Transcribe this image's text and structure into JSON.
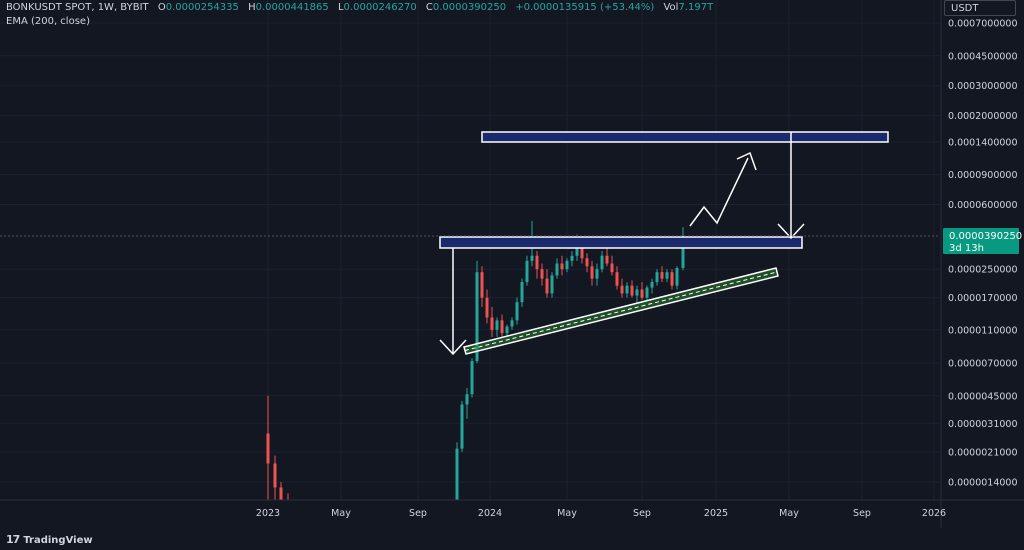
{
  "header": {
    "symbol": "BONKUSDT SPOT, 1W, BYBIT",
    "o_label": "O",
    "o_value": "0.0000254335",
    "h_label": "H",
    "h_value": "0.0000441865",
    "l_label": "L",
    "l_value": "0.0000246270",
    "c_label": "C",
    "c_value": "0.0000390250",
    "change": "+0.0000135915 (+53.44%)",
    "vol_label": "Vol",
    "vol_value": "7.197T"
  },
  "indicator": "EMA (200, close)",
  "currency": "USDT",
  "price_tag": {
    "price": "0.0000390250",
    "countdown": "3d 13h"
  },
  "logo_text": "TradingView",
  "colors": {
    "up": "#26a69a",
    "down": "#ef5350",
    "background": "#131722",
    "zone": "#1a2a6c"
  },
  "chart_data": {
    "type": "candlestick",
    "y_scale": "log",
    "y_ticks": [
      "0.0007000000",
      "0.0004500000",
      "0.0003000000",
      "0.0002000000",
      "0.0001400000",
      "0.0000900000",
      "0.0000600000",
      "0.0000390250",
      "0.0000250000",
      "0.0000170000",
      "0.0000110000",
      "0.0000070000",
      "0.0000045000",
      "0.0000031000",
      "0.0000021000",
      "0.0000014000"
    ],
    "x_ticks": [
      "2023",
      "May",
      "Sep",
      "2024",
      "May",
      "Sep",
      "2025",
      "May",
      "Sep",
      "2026"
    ],
    "candles": [
      {
        "o": 2.7e-06,
        "h": 4.5e-06,
        "l": 1e-06,
        "c": 1.8e-06,
        "x": 268
      },
      {
        "o": 1.8e-06,
        "h": 2e-06,
        "l": 1.1e-06,
        "c": 1.3e-06,
        "x": 275
      },
      {
        "o": 1.3e-06,
        "h": 1.4e-06,
        "l": 1e-06,
        "c": 1.1e-06,
        "x": 281
      },
      {
        "o": 1.1e-06,
        "h": 1.2e-06,
        "l": 1e-06,
        "c": 1e-06,
        "x": 288
      },
      {
        "o": 1.1e-06,
        "h": 2.4e-06,
        "l": 1.1e-06,
        "c": 2.2e-06,
        "x": 457
      },
      {
        "o": 2.2e-06,
        "h": 4.2e-06,
        "l": 2.1e-06,
        "c": 4e-06,
        "x": 462
      },
      {
        "o": 4e-06,
        "h": 5e-06,
        "l": 3.3e-06,
        "c": 4.6e-06,
        "x": 467
      },
      {
        "o": 4.6e-06,
        "h": 7.5e-06,
        "l": 4.4e-06,
        "c": 7.2e-06,
        "x": 472
      },
      {
        "o": 7.2e-06,
        "h": 2.8e-05,
        "l": 7e-06,
        "c": 2.4e-05,
        "x": 477
      },
      {
        "o": 2.4e-05,
        "h": 2.6e-05,
        "l": 1.5e-05,
        "c": 1.7e-05,
        "x": 482
      },
      {
        "o": 1.7e-05,
        "h": 1.9e-05,
        "l": 1.2e-05,
        "c": 1.3e-05,
        "x": 487
      },
      {
        "o": 1.3e-05,
        "h": 1.5e-05,
        "l": 1e-05,
        "c": 1.1e-05,
        "x": 492
      },
      {
        "o": 1.1e-05,
        "h": 1.3e-05,
        "l": 1e-05,
        "c": 1.25e-05,
        "x": 497
      },
      {
        "o": 1.25e-05,
        "h": 1.35e-05,
        "l": 1e-05,
        "c": 1.05e-05,
        "x": 502
      },
      {
        "o": 1.05e-05,
        "h": 1.18e-05,
        "l": 1e-05,
        "c": 1.15e-05,
        "x": 507
      },
      {
        "o": 1.15e-05,
        "h": 1.3e-05,
        "l": 1.1e-05,
        "c": 1.25e-05,
        "x": 512
      },
      {
        "o": 1.25e-05,
        "h": 1.7e-05,
        "l": 1.18e-05,
        "c": 1.6e-05,
        "x": 517
      },
      {
        "o": 1.6e-05,
        "h": 2.2e-05,
        "l": 1.5e-05,
        "c": 2.1e-05,
        "x": 522
      },
      {
        "o": 2.1e-05,
        "h": 3e-05,
        "l": 2e-05,
        "c": 2.8e-05,
        "x": 527
      },
      {
        "o": 2.8e-05,
        "h": 4.8e-05,
        "l": 2.6e-05,
        "c": 3e-05,
        "x": 532
      },
      {
        "o": 3e-05,
        "h": 3.2e-05,
        "l": 2.2e-05,
        "c": 2.5e-05,
        "x": 537
      },
      {
        "o": 2.5e-05,
        "h": 2.7e-05,
        "l": 2e-05,
        "c": 2.2e-05,
        "x": 542
      },
      {
        "o": 2.2e-05,
        "h": 2.5e-05,
        "l": 1.7e-05,
        "c": 1.8e-05,
        "x": 547
      },
      {
        "o": 1.8e-05,
        "h": 2.4e-05,
        "l": 1.7e-05,
        "c": 2.3e-05,
        "x": 552
      },
      {
        "o": 2.3e-05,
        "h": 2.9e-05,
        "l": 2.2e-05,
        "c": 2.7e-05,
        "x": 557
      },
      {
        "o": 2.7e-05,
        "h": 3e-05,
        "l": 2.3e-05,
        "c": 2.5e-05,
        "x": 562
      },
      {
        "o": 2.5e-05,
        "h": 2.9e-05,
        "l": 2.4e-05,
        "c": 2.8e-05,
        "x": 567
      },
      {
        "o": 2.8e-05,
        "h": 3.2e-05,
        "l": 2.6e-05,
        "c": 3e-05,
        "x": 572
      },
      {
        "o": 3e-05,
        "h": 4e-05,
        "l": 2.8e-05,
        "c": 3.4e-05,
        "x": 577
      },
      {
        "o": 3.4e-05,
        "h": 3.9e-05,
        "l": 2.7e-05,
        "c": 2.9e-05,
        "x": 582
      },
      {
        "o": 2.9e-05,
        "h": 3.1e-05,
        "l": 2.4e-05,
        "c": 2.6e-05,
        "x": 587
      },
      {
        "o": 2.6e-05,
        "h": 2.8e-05,
        "l": 2e-05,
        "c": 2.2e-05,
        "x": 592
      },
      {
        "o": 2.2e-05,
        "h": 2.7e-05,
        "l": 2e-05,
        "c": 2.5e-05,
        "x": 597
      },
      {
        "o": 2.5e-05,
        "h": 3.2e-05,
        "l": 2.4e-05,
        "c": 3e-05,
        "x": 602
      },
      {
        "o": 3e-05,
        "h": 3.4e-05,
        "l": 2.6e-05,
        "c": 2.7e-05,
        "x": 607
      },
      {
        "o": 2.7e-05,
        "h": 3e-05,
        "l": 2.3e-05,
        "c": 2.4e-05,
        "x": 612
      },
      {
        "o": 2.4e-05,
        "h": 2.6e-05,
        "l": 1.9e-05,
        "c": 2e-05,
        "x": 617
      },
      {
        "o": 2e-05,
        "h": 2.2e-05,
        "l": 1.7e-05,
        "c": 1.8e-05,
        "x": 622
      },
      {
        "o": 1.8e-05,
        "h": 2.1e-05,
        "l": 1.7e-05,
        "c": 2e-05,
        "x": 627
      },
      {
        "o": 2e-05,
        "h": 2.15e-05,
        "l": 1.7e-05,
        "c": 1.75e-05,
        "x": 632
      },
      {
        "o": 1.75e-05,
        "h": 2e-05,
        "l": 1.6e-05,
        "c": 1.9e-05,
        "x": 637
      },
      {
        "o": 1.9e-05,
        "h": 2.1e-05,
        "l": 1.65e-05,
        "c": 1.7e-05,
        "x": 642
      },
      {
        "o": 1.7e-05,
        "h": 2e-05,
        "l": 1.65e-05,
        "c": 1.95e-05,
        "x": 647
      },
      {
        "o": 1.95e-05,
        "h": 2.2e-05,
        "l": 1.8e-05,
        "c": 2.1e-05,
        "x": 652
      },
      {
        "o": 2.1e-05,
        "h": 2.5e-05,
        "l": 2e-05,
        "c": 2.4e-05,
        "x": 657
      },
      {
        "o": 2.4e-05,
        "h": 2.6e-05,
        "l": 2.1e-05,
        "c": 2.2e-05,
        "x": 662
      },
      {
        "o": 2.2e-05,
        "h": 2.5e-05,
        "l": 2.1e-05,
        "c": 2.4e-05,
        "x": 667
      },
      {
        "o": 2.4e-05,
        "h": 2.5e-05,
        "l": 1.9e-05,
        "c": 2e-05,
        "x": 672
      },
      {
        "o": 2e-05,
        "h": 2.6e-05,
        "l": 1.9e-05,
        "c": 2.54e-05,
        "x": 677
      },
      {
        "o": 2.54335e-05,
        "h": 4.41865e-05,
        "l": 2.4627e-05,
        "c": 3.9025e-05,
        "x": 683
      }
    ]
  }
}
